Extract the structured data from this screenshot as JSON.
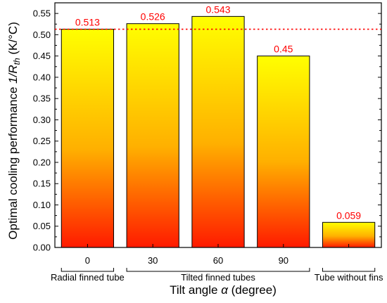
{
  "chart_data": {
    "type": "bar",
    "categories": [
      "0",
      "30",
      "60",
      "90",
      ""
    ],
    "values": [
      0.513,
      0.526,
      0.543,
      0.45,
      0.059
    ],
    "value_labels": [
      "0.513",
      "0.526",
      "0.543",
      "0.45",
      "0.059"
    ],
    "ylim": [
      0,
      0.575
    ],
    "y_ticks": [
      0.0,
      0.05,
      0.1,
      0.15,
      0.2,
      0.25,
      0.3,
      0.35,
      0.4,
      0.45,
      0.5,
      0.55
    ],
    "y_tick_labels": [
      "0.00",
      "0.05",
      "0.10",
      "0.15",
      "0.20",
      "0.25",
      "0.30",
      "0.35",
      "0.40",
      "0.45",
      "0.50",
      "0.55"
    ],
    "reference_line": 0.513,
    "groups": [
      {
        "label": "Radial finned tube",
        "from": 0,
        "to": 0
      },
      {
        "label": "Tilted finned tubes",
        "from": 1,
        "to": 3
      },
      {
        "label": "Tube without fins",
        "from": 4,
        "to": 4
      }
    ],
    "xlabel_main": "Tilt angle ",
    "xlabel_symbol": "α",
    "xlabel_unit": " (degree)",
    "ylabel_main": "Optimal cooling performance ",
    "ylabel_symbol": "1/R",
    "ylabel_sub": "th",
    "ylabel_unit": " (K/°C)",
    "grid": false,
    "colors": {
      "bar_top": "#ffff00",
      "bar_bottom": "#ff1a00",
      "label": "#ff0000",
      "reference_line": "#ff0000"
    }
  }
}
